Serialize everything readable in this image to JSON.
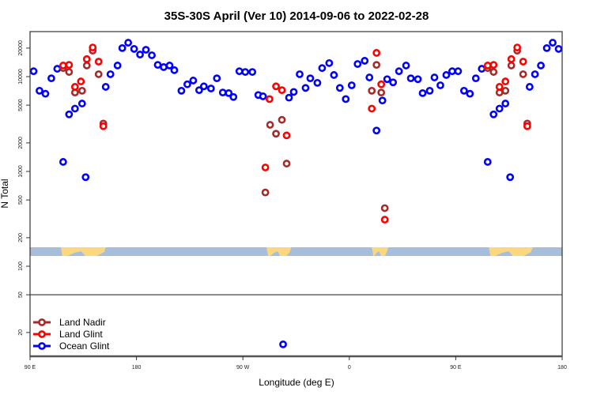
{
  "chart_data": {
    "type": "scatter",
    "title": "35S-30S April (Ver 10)   2014-09-06 to 2022-02-28",
    "xlabel": "Longitude (deg E)",
    "ylabel": "N Total",
    "x_unit_note": "unwrapped longitude, degrees; 90 = 90 E, 540 = 180",
    "xlim": [
      90,
      540
    ],
    "ylim": [
      11,
      30000
    ],
    "yscale": "log",
    "x_ticks": [
      {
        "value": 90,
        "label": "90 E"
      },
      {
        "value": 180,
        "label": "180"
      },
      {
        "value": 270,
        "label": "90 W"
      },
      {
        "value": 360,
        "label": "0"
      },
      {
        "value": 450,
        "label": "90 E"
      },
      {
        "value": 540,
        "label": "180"
      }
    ],
    "y_ticks": [
      {
        "value": 20000,
        "label": "20000"
      },
      {
        "value": 10000,
        "label": "10000"
      },
      {
        "value": 5000,
        "label": "5000"
      },
      {
        "value": 2000,
        "label": "2000"
      },
      {
        "value": 1000,
        "label": "1000"
      },
      {
        "value": 500,
        "label": "500"
      },
      {
        "value": 200,
        "label": "200"
      },
      {
        "value": 100,
        "label": "100"
      },
      {
        "value": 50,
        "label": "50"
      },
      {
        "value": 20,
        "label": "20"
      }
    ],
    "reference_line": 50,
    "legend_position": "bottom-left",
    "series": [
      {
        "name": "Ocean Glint",
        "color": "#0000ff",
        "points": [
          [
            93,
            11400
          ],
          [
            98,
            7100
          ],
          [
            103,
            6600
          ],
          [
            108,
            9600
          ],
          [
            113,
            12100
          ],
          [
            118,
            1260
          ],
          [
            123,
            4000
          ],
          [
            128,
            4600
          ],
          [
            134,
            5200
          ],
          [
            137,
            870
          ],
          [
            154,
            7800
          ],
          [
            158,
            10600
          ],
          [
            164,
            13100
          ],
          [
            168,
            20000
          ],
          [
            173,
            22800
          ],
          [
            178,
            19600
          ],
          [
            183,
            17100
          ],
          [
            188,
            19200
          ],
          [
            193,
            16800
          ],
          [
            198,
            13300
          ],
          [
            203,
            12600
          ],
          [
            208,
            13100
          ],
          [
            212,
            11700
          ],
          [
            218,
            7100
          ],
          [
            223,
            8300
          ],
          [
            228,
            9100
          ],
          [
            233,
            7200
          ],
          [
            237,
            7900
          ],
          [
            243,
            7500
          ],
          [
            248,
            9600
          ],
          [
            253,
            6800
          ],
          [
            258,
            6700
          ],
          [
            262,
            6100
          ],
          [
            267,
            11400
          ],
          [
            272,
            11200
          ],
          [
            278,
            11200
          ],
          [
            283,
            6400
          ],
          [
            287,
            6200
          ],
          [
            304,
            15
          ],
          [
            309,
            6000
          ],
          [
            313,
            6900
          ],
          [
            318,
            10600
          ],
          [
            323,
            7600
          ],
          [
            327,
            9600
          ],
          [
            333,
            8600
          ],
          [
            337,
            12300
          ],
          [
            343,
            13900
          ],
          [
            347,
            10400
          ],
          [
            352,
            7600
          ],
          [
            357,
            5800
          ],
          [
            362,
            8100
          ],
          [
            367,
            13600
          ],
          [
            373,
            14700
          ],
          [
            377,
            9800
          ],
          [
            383,
            2700
          ],
          [
            388,
            5600
          ],
          [
            392,
            9400
          ],
          [
            397,
            8700
          ],
          [
            402,
            11400
          ],
          [
            408,
            13100
          ],
          [
            412,
            9600
          ],
          [
            418,
            9400
          ],
          [
            422,
            6700
          ],
          [
            428,
            7100
          ],
          [
            432,
            9800
          ],
          [
            437,
            8100
          ],
          [
            442,
            10400
          ],
          [
            447,
            11400
          ],
          [
            452,
            11400
          ],
          [
            457,
            7100
          ],
          [
            462,
            6600
          ],
          [
            467,
            9600
          ],
          [
            472,
            12100
          ],
          [
            477,
            1260
          ],
          [
            482,
            4000
          ],
          [
            487,
            4600
          ],
          [
            492,
            5200
          ],
          [
            496,
            870
          ],
          [
            512.5,
            7800
          ],
          [
            517,
            10600
          ],
          [
            522,
            13100
          ],
          [
            527,
            20000
          ],
          [
            532,
            22800
          ],
          [
            537,
            19600
          ]
        ]
      },
      {
        "name": "Land Nadir",
        "color": "#a52a2a",
        "points": [
          [
            118,
            12300
          ],
          [
            123,
            11200
          ],
          [
            128,
            6800
          ],
          [
            134,
            7100
          ],
          [
            138,
            13100
          ],
          [
            143,
            18800
          ],
          [
            148,
            10600
          ],
          [
            152,
            3200
          ],
          [
            289,
            600
          ],
          [
            293,
            3100
          ],
          [
            298,
            2500
          ],
          [
            303,
            3500
          ],
          [
            307,
            1210
          ],
          [
            379,
            7100
          ],
          [
            383,
            13300
          ],
          [
            387,
            6800
          ],
          [
            390,
            410
          ],
          [
            477,
            12300
          ],
          [
            482,
            11200
          ],
          [
            487,
            6800
          ],
          [
            492,
            7100
          ],
          [
            497,
            13100
          ],
          [
            502,
            18800
          ],
          [
            507,
            10600
          ],
          [
            510.5,
            3200
          ]
        ]
      },
      {
        "name": "Land Glint",
        "color": "#ff0000",
        "points": [
          [
            118,
            13100
          ],
          [
            123,
            13300
          ],
          [
            128,
            7800
          ],
          [
            133,
            8900
          ],
          [
            138,
            15300
          ],
          [
            143,
            20300
          ],
          [
            148,
            14400
          ],
          [
            152,
            3000
          ],
          [
            289,
            1100
          ],
          [
            292.5,
            5800
          ],
          [
            298,
            7900
          ],
          [
            303,
            7200
          ],
          [
            307,
            2400
          ],
          [
            379,
            4600
          ],
          [
            383,
            17800
          ],
          [
            387,
            8300
          ],
          [
            390,
            310
          ],
          [
            477,
            13100
          ],
          [
            482,
            13300
          ],
          [
            487,
            7800
          ],
          [
            492,
            8900
          ],
          [
            497,
            15300
          ],
          [
            502,
            20300
          ],
          [
            507,
            14400
          ],
          [
            510.5,
            3000
          ]
        ]
      }
    ],
    "legend": [
      "Land Nadir",
      "Land Glint",
      "Ocean Glint"
    ],
    "map_strip": {
      "ocean_color": "#a7bddc",
      "land_color": "#fbd87f",
      "land_ranges": [
        [
          116,
          154
        ],
        [
          290,
          311
        ],
        [
          379,
          393
        ],
        [
          478,
          515
        ]
      ]
    }
  }
}
